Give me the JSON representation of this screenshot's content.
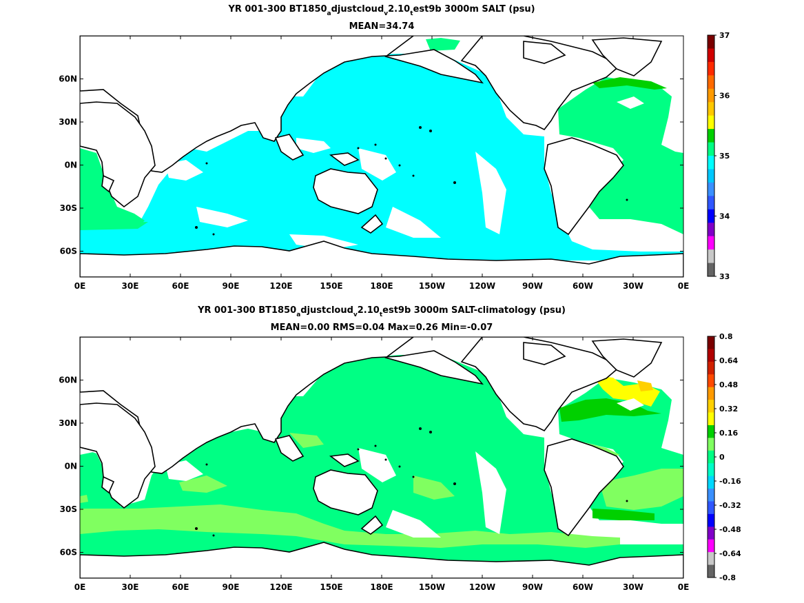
{
  "panels": [
    {
      "title_parts": [
        "YR 001-300 BT1850",
        "a",
        "djustcloud",
        "v",
        "2.10",
        "t",
        "est9b 3000m SALT (psu)"
      ],
      "stats": "MEAN=34.74"
    },
    {
      "title_parts": [
        "YR 001-300 BT1850",
        "a",
        "djustcloud",
        "v",
        "2.10",
        "t",
        "est9b 3000m SALT-climatology (psu)"
      ],
      "stats": "MEAN=0.00   RMS=0.04   Max=0.26   Min=-0.07"
    }
  ],
  "chart_data": [
    {
      "type": "heatmap",
      "title": "YR 001-300 BT1850_adjustcloud_v2.10_test9b 3000m SALT (psu)",
      "subtitle": "MEAN=34.74",
      "x_ticks": [
        "0E",
        "30E",
        "60E",
        "90E",
        "120E",
        "150E",
        "180E",
        "150W",
        "120W",
        "90W",
        "60W",
        "30W",
        "0E"
      ],
      "y_ticks": [
        "60N",
        "30N",
        "0N",
        "30S",
        "60S"
      ],
      "xlim": [
        0,
        360
      ],
      "ylim": [
        -78,
        90
      ],
      "colorbar": {
        "range": [
          33,
          37
        ],
        "labels": [
          "37",
          "36",
          "35",
          "34",
          "33"
        ],
        "colors": [
          "#7a0000",
          "#d00000",
          "#ff2a00",
          "#ff6a00",
          "#ff9a00",
          "#ffc800",
          "#ffff00",
          "#00d000",
          "#00ff84",
          "#00ffff",
          "#00c8ff",
          "#3a90ff",
          "#2f57ff",
          "#0000ff",
          "#8000c8",
          "#ff00ff",
          "#c8c8c8",
          "#646464"
        ]
      },
      "dominant_values": {
        "pacific_indian_deep": "34.6–34.8 (cyan)",
        "atlantic_deep": "34.8–35.0 (light green)",
        "north_atlantic": "35.0–35.2 (green)"
      }
    },
    {
      "type": "heatmap",
      "title": "YR 001-300 BT1850_adjustcloud_v2.10_test9b 3000m SALT-climatology (psu)",
      "subtitle": "MEAN=0.00   RMS=0.04   Max=0.26   Min=-0.07",
      "x_ticks": [
        "0E",
        "30E",
        "60E",
        "90E",
        "120E",
        "150E",
        "180E",
        "150W",
        "120W",
        "90W",
        "60W",
        "30W",
        "0E"
      ],
      "y_ticks": [
        "60N",
        "30N",
        "0N",
        "30S",
        "60S"
      ],
      "xlim": [
        0,
        360
      ],
      "ylim": [
        -78,
        90
      ],
      "colorbar": {
        "range": [
          -0.8,
          0.8
        ],
        "labels": [
          "0.8",
          "0.64",
          "0.48",
          "0.32",
          "0.16",
          "0",
          "-0.16",
          "-0.32",
          "-0.48",
          "-0.64",
          "-0.8"
        ],
        "colors": [
          "#7a0000",
          "#b00000",
          "#d02000",
          "#ff4a00",
          "#ff9a00",
          "#ffd000",
          "#ffff00",
          "#00d000",
          "#80ff60",
          "#00ff84",
          "#00ffc8",
          "#00d8ff",
          "#3a90ff",
          "#2f57ff",
          "#0000ff",
          "#8000c8",
          "#ff00ff",
          "#c8c8c8",
          "#646464"
        ]
      },
      "dominant_values": {
        "global_deep": "-0.04–0.04 (green-cyan)",
        "southern_ocean": "0.0–0.08 (light green)",
        "north_atlantic": "0.08–0.24 (green/yellow)"
      }
    }
  ]
}
